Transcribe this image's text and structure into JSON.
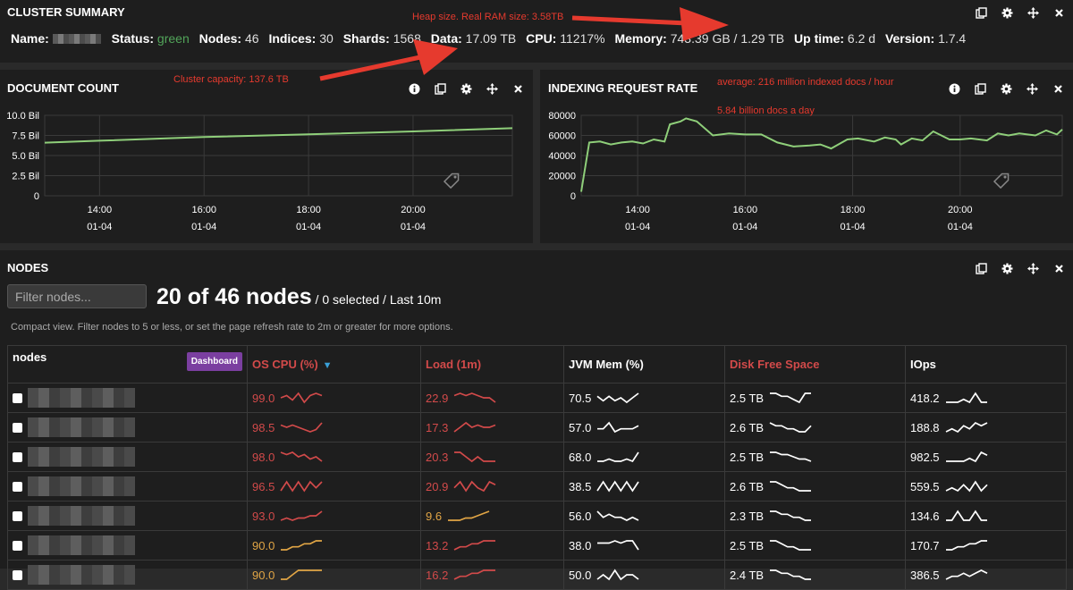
{
  "cluster_summary": {
    "title": "CLUSTER SUMMARY",
    "name_label": "Name:",
    "status_label": "Status:",
    "status_value": "green",
    "nodes_label": "Nodes:",
    "nodes_value": "46",
    "indices_label": "Indices:",
    "indices_value": "30",
    "shards_label": "Shards:",
    "shards_value": "1568",
    "data_label": "Data:",
    "data_value": "17.09 TB",
    "cpu_label": "CPU:",
    "cpu_value": "11217%",
    "memory_label": "Memory:",
    "memory_value": "743.39 GB / 1.29 TB",
    "uptime_label": "Up time:",
    "uptime_value": "6.2 d",
    "version_label": "Version:",
    "version_value": "1.7.4"
  },
  "annotations": {
    "heap": "Heap size. Real RAM size: 3.58TB",
    "capacity": "Cluster capacity: 137.6 TB",
    "average": "average: 216 million indexed docs / hour",
    "daily": "5.84 billion docs a day"
  },
  "document_count": {
    "title": "DOCUMENT COUNT",
    "chart_data": {
      "type": "line",
      "y_ticks": [
        "10.0 Bil",
        "7.5 Bil",
        "5.0 Bil",
        "2.5 Bil",
        "0"
      ],
      "x_ticks": [
        {
          "time": "14:00",
          "date": "01-04"
        },
        {
          "time": "16:00",
          "date": "01-04"
        },
        {
          "time": "18:00",
          "date": "01-04"
        },
        {
          "time": "20:00",
          "date": "01-04"
        }
      ],
      "ylim": [
        0,
        10
      ],
      "xlim": [
        12.95,
        21.9
      ],
      "series": [
        {
          "color": "#8fcf7a",
          "x": [
            12.95,
            14,
            16,
            18,
            20,
            21.9
          ],
          "y": [
            6.6,
            6.85,
            7.3,
            7.65,
            8.0,
            8.4
          ]
        }
      ]
    }
  },
  "indexing_rate": {
    "title": "INDEXING REQUEST RATE",
    "chart_data": {
      "type": "line",
      "y_ticks": [
        "80000",
        "60000",
        "40000",
        "20000",
        "0"
      ],
      "x_ticks": [
        {
          "time": "14:00",
          "date": "01-04"
        },
        {
          "time": "16:00",
          "date": "01-04"
        },
        {
          "time": "18:00",
          "date": "01-04"
        },
        {
          "time": "20:00",
          "date": "01-04"
        }
      ],
      "ylim": [
        0,
        80000
      ],
      "xlim": [
        12.95,
        21.9
      ],
      "series": [
        {
          "color": "#8fcf7a",
          "x": [
            12.95,
            13.1,
            13.3,
            13.5,
            13.7,
            13.9,
            14.1,
            14.3,
            14.5,
            14.6,
            14.8,
            14.9,
            15.1,
            15.4,
            15.7,
            16.0,
            16.3,
            16.6,
            16.9,
            17.2,
            17.4,
            17.6,
            17.9,
            18.1,
            18.4,
            18.6,
            18.8,
            18.9,
            19.1,
            19.3,
            19.5,
            19.8,
            20.0,
            20.2,
            20.5,
            20.7,
            20.9,
            21.1,
            21.4,
            21.6,
            21.8,
            21.9
          ],
          "y": [
            4000,
            53000,
            54000,
            51000,
            53000,
            54000,
            52000,
            56000,
            54000,
            71000,
            74000,
            77000,
            74000,
            60000,
            62000,
            61000,
            61000,
            53000,
            49000,
            50000,
            51000,
            47000,
            56000,
            57000,
            54000,
            58000,
            56000,
            51000,
            57000,
            55000,
            64000,
            56000,
            56000,
            57000,
            55000,
            62000,
            60000,
            62000,
            60000,
            65000,
            61000,
            66000
          ]
        }
      ]
    }
  },
  "nodes": {
    "title": "NODES",
    "filter_placeholder": "Filter nodes...",
    "count_text": "20 of 46 nodes",
    "count_sub": " / 0 selected / Last 10m",
    "help_text": "Compact view. Filter nodes to 5 or less, or set the page refresh rate to 2m or greater for more options.",
    "columns": {
      "nodes": "nodes",
      "dashboard": "Dashboard",
      "os_cpu": "OS CPU (%)",
      "load": "Load (1m)",
      "jvm_mem": "JVM Mem (%)",
      "disk_free": "Disk Free Space",
      "iops": "IOps"
    },
    "rows": [
      {
        "cpu": "99.0",
        "cpu_color": "red",
        "cpu_trend": [
          4,
          5,
          3,
          6,
          2,
          5,
          6,
          5
        ],
        "load": "22.9",
        "load_color": "red",
        "load_trend": [
          5,
          6,
          5,
          6,
          5,
          4,
          4,
          2
        ],
        "jvm": "70.5",
        "jvm_trend": [
          5,
          2,
          5,
          2,
          4,
          1,
          4,
          7
        ],
        "disk": "2.5 TB",
        "disk_trend": [
          6,
          6,
          5,
          5,
          4,
          3,
          6,
          6
        ],
        "iops": "418.2",
        "iops_trend": [
          3,
          3,
          3,
          4,
          3,
          6,
          3,
          3
        ]
      },
      {
        "cpu": "98.5",
        "cpu_color": "red",
        "cpu_trend": [
          6,
          5,
          6,
          5,
          4,
          3,
          4,
          7
        ],
        "load": "17.3",
        "load_color": "red",
        "load_trend": [
          3,
          5,
          7,
          5,
          6,
          5,
          5,
          6
        ],
        "jvm": "57.0",
        "jvm_trend": [
          3,
          3,
          5,
          2,
          3,
          3,
          3,
          4
        ],
        "disk": "2.6 TB",
        "disk_trend": [
          6,
          5,
          5,
          4,
          4,
          3,
          3,
          5
        ],
        "iops": "188.8",
        "iops_trend": [
          3,
          4,
          3,
          5,
          4,
          6,
          5,
          6
        ]
      },
      {
        "cpu": "98.0",
        "cpu_color": "red",
        "cpu_trend": [
          6,
          5,
          6,
          4,
          5,
          3,
          4,
          2
        ],
        "load": "20.3",
        "load_color": "red",
        "load_trend": [
          5,
          5,
          4,
          3,
          4,
          3,
          3,
          3
        ],
        "jvm": "68.0",
        "jvm_trend": [
          3,
          3,
          4,
          3,
          3,
          4,
          3,
          7
        ],
        "disk": "2.5 TB",
        "disk_trend": [
          6,
          6,
          5,
          5,
          4,
          3,
          3,
          2
        ],
        "iops": "982.5",
        "iops_trend": [
          3,
          3,
          3,
          3,
          4,
          3,
          6,
          5
        ]
      },
      {
        "cpu": "96.5",
        "cpu_color": "red",
        "cpu_trend": [
          3,
          6,
          3,
          6,
          3,
          6,
          4,
          6
        ],
        "load": "20.9",
        "load_color": "red",
        "load_trend": [
          4,
          6,
          3,
          6,
          4,
          3,
          6,
          5
        ],
        "jvm": "38.5",
        "jvm_trend": [
          3,
          6,
          3,
          6,
          3,
          6,
          3,
          6
        ],
        "disk": "2.6 TB",
        "disk_trend": [
          6,
          6,
          5,
          4,
          4,
          3,
          3,
          3
        ],
        "iops": "559.5",
        "iops_trend": [
          3,
          4,
          3,
          5,
          3,
          6,
          3,
          5
        ]
      },
      {
        "cpu": "93.0",
        "cpu_color": "red",
        "cpu_trend": [
          3,
          4,
          3,
          4,
          4,
          5,
          5,
          7
        ],
        "load": "9.6",
        "load_color": "orange",
        "load_trend": [
          3,
          3,
          3,
          4,
          4,
          5,
          6,
          7
        ],
        "jvm": "56.0",
        "jvm_trend": [
          6,
          4,
          5,
          4,
          4,
          3,
          4,
          3
        ],
        "disk": "2.3 TB",
        "disk_trend": [
          6,
          6,
          5,
          5,
          4,
          4,
          3,
          3
        ],
        "iops": "134.6",
        "iops_trend": [
          3,
          3,
          6,
          3,
          3,
          6,
          3,
          3
        ]
      },
      {
        "cpu": "90.0",
        "cpu_color": "orange",
        "cpu_trend": [
          3,
          3,
          4,
          4,
          5,
          5,
          6,
          6
        ],
        "load": "13.2",
        "load_color": "red",
        "load_trend": [
          3,
          4,
          4,
          5,
          5,
          6,
          6,
          6
        ],
        "jvm": "38.0",
        "jvm_trend": [
          5,
          5,
          5,
          6,
          5,
          6,
          6,
          2
        ],
        "disk": "2.5 TB",
        "disk_trend": [
          6,
          6,
          5,
          4,
          4,
          3,
          3,
          3
        ],
        "iops": "170.7",
        "iops_trend": [
          3,
          3,
          4,
          4,
          5,
          5,
          6,
          6
        ]
      },
      {
        "cpu": "90.0",
        "cpu_color": "orange",
        "cpu_trend": [
          3,
          3,
          4,
          5,
          5,
          5,
          5,
          5
        ],
        "load": "16.2",
        "load_color": "red",
        "load_trend": [
          3,
          4,
          4,
          5,
          5,
          6,
          6,
          6
        ],
        "jvm": "50.0",
        "jvm_trend": [
          4,
          5,
          4,
          6,
          4,
          5,
          5,
          4
        ],
        "disk": "2.4 TB",
        "disk_trend": [
          6,
          6,
          5,
          5,
          4,
          4,
          3,
          3
        ],
        "iops": "386.5",
        "iops_trend": [
          3,
          4,
          4,
          5,
          4,
          5,
          6,
          5
        ]
      }
    ]
  }
}
